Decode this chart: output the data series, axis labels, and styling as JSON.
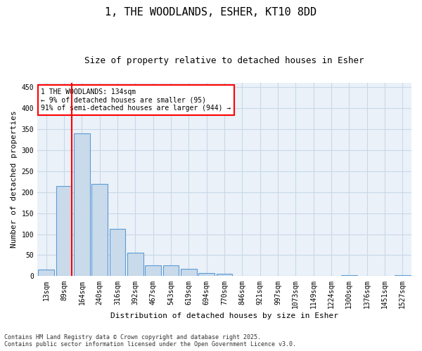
{
  "title1": "1, THE WOODLANDS, ESHER, KT10 8DD",
  "title2": "Size of property relative to detached houses in Esher",
  "xlabel": "Distribution of detached houses by size in Esher",
  "ylabel": "Number of detached properties",
  "categories": [
    "13sqm",
    "89sqm",
    "164sqm",
    "240sqm",
    "316sqm",
    "392sqm",
    "467sqm",
    "543sqm",
    "619sqm",
    "694sqm",
    "770sqm",
    "846sqm",
    "921sqm",
    "997sqm",
    "1073sqm",
    "1149sqm",
    "1224sqm",
    "1300sqm",
    "1376sqm",
    "1451sqm",
    "1527sqm"
  ],
  "values": [
    15,
    215,
    340,
    220,
    112,
    55,
    25,
    25,
    17,
    8,
    6,
    0,
    1,
    0,
    0,
    0,
    0,
    2,
    0,
    0,
    3
  ],
  "bar_color": "#c9daea",
  "bar_edge_color": "#5b9bd5",
  "vline_color": "red",
  "annotation_text": "1 THE WOODLANDS: 134sqm\n← 9% of detached houses are smaller (95)\n91% of semi-detached houses are larger (944) →",
  "annotation_box_color": "white",
  "annotation_box_edge": "red",
  "ylim": [
    0,
    460
  ],
  "yticks": [
    0,
    50,
    100,
    150,
    200,
    250,
    300,
    350,
    400,
    450
  ],
  "grid_color": "#c8d8e8",
  "bg_color": "#eaf1f8",
  "footnote": "Contains HM Land Registry data © Crown copyright and database right 2025.\nContains public sector information licensed under the Open Government Licence v3.0.",
  "title_fontsize": 11,
  "subtitle_fontsize": 9,
  "axis_label_fontsize": 8,
  "tick_fontsize": 7,
  "annot_fontsize": 7,
  "footnote_fontsize": 6
}
